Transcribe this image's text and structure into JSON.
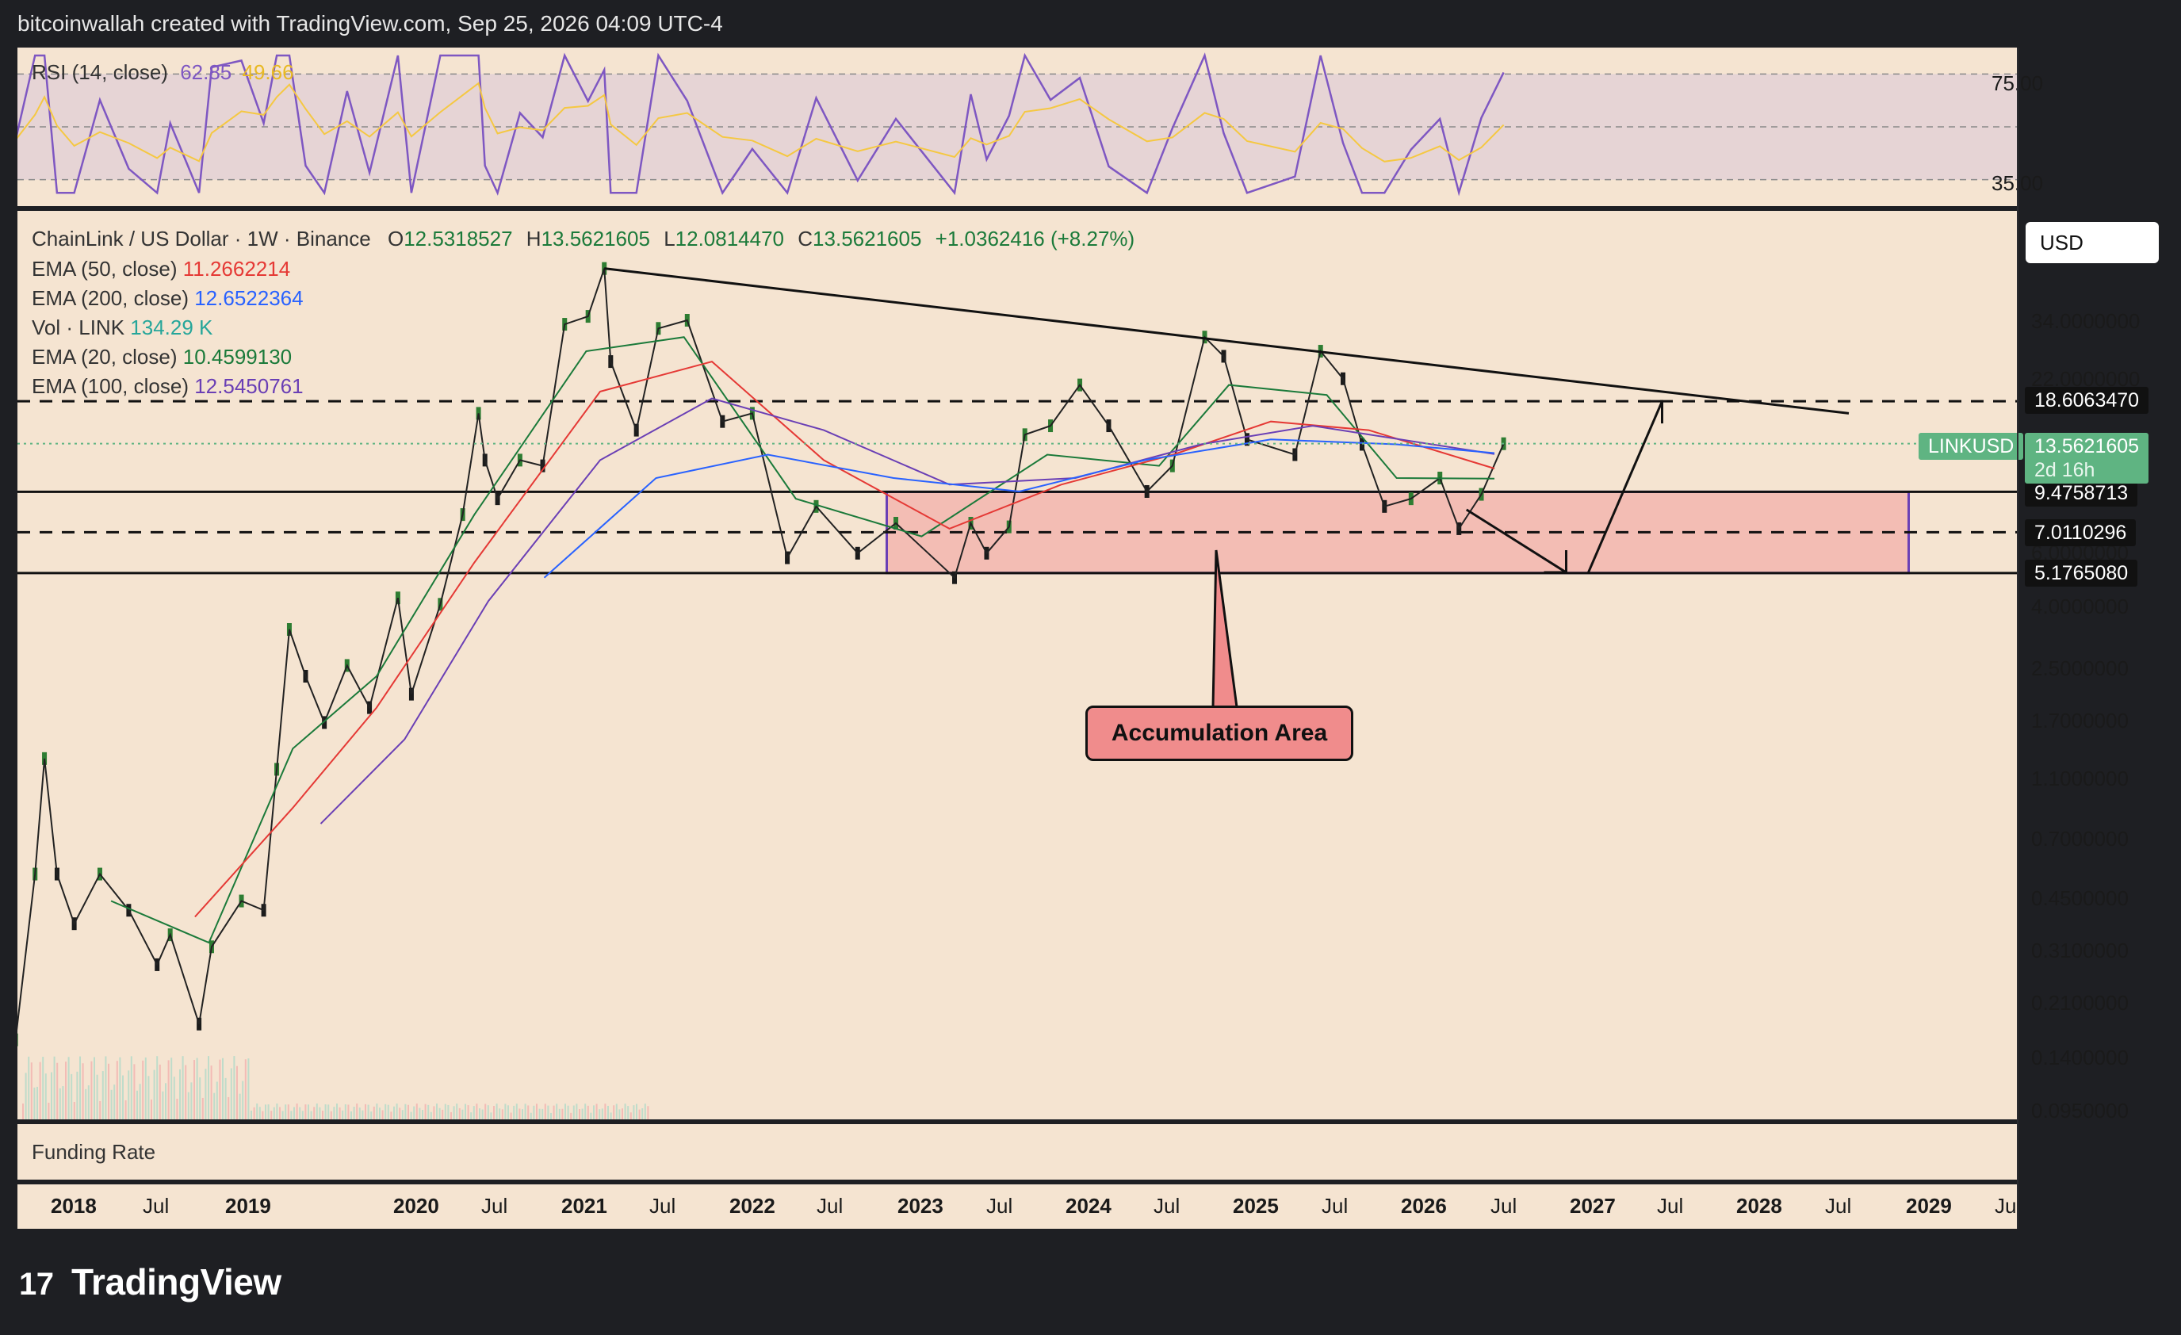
{
  "header": {
    "credit": "bitcoinwallah created with TradingView.com, Sep 25, 2026 04:09 UTC-4"
  },
  "rsi": {
    "label": "RSI (14, close)",
    "value": "62.85",
    "ma_value": "49.66",
    "levels": [
      "75.00",
      "35.00"
    ],
    "colors": {
      "rsi": "#7e57c2",
      "ma": "#f5c842"
    }
  },
  "legend": {
    "title": "ChainLink / US Dollar · 1W · Binance",
    "ohlc": {
      "o_label": "O",
      "o": "12.5318527",
      "h_label": "H",
      "h": "13.5621605",
      "l_label": "L",
      "l": "12.0814470",
      "c_label": "C",
      "c": "13.5621605",
      "change": "+1.0362416 (+8.27%)"
    },
    "indicators": [
      {
        "label": "EMA (50, close)",
        "value": "11.2662214",
        "color": "#e53935"
      },
      {
        "label": "EMA (200, close)",
        "value": "12.6522364",
        "color": "#2962ff"
      },
      {
        "label": "Vol · LINK",
        "value": "134.29 K",
        "color": "#26a69a"
      },
      {
        "label": "EMA (20, close)",
        "value": "10.4599130",
        "color": "#1b7a3a"
      },
      {
        "label": "EMA (100, close)",
        "value": "12.5450761",
        "color": "#6a3fb5"
      }
    ]
  },
  "currency": "USD",
  "price_axis": [
    "34.0000000",
    "22.0000000",
    "6.0000000",
    "4.0000000",
    "2.5000000",
    "1.7000000",
    "1.1000000",
    "0.7000000",
    "0.4500000",
    "0.3100000",
    "0.2100000",
    "0.1400000",
    "0.0950000"
  ],
  "price_tags": [
    {
      "value": "18.6063470"
    },
    {
      "value": "9.4758713"
    },
    {
      "value": "7.0110296"
    },
    {
      "value": "5.1765080"
    }
  ],
  "current_price": {
    "symbol": "LINKUSD",
    "value": "13.5621605",
    "countdown": "2d 16h"
  },
  "time_axis": [
    "2018",
    "Jul",
    "2019",
    "2020",
    "Jul",
    "2021",
    "Jul",
    "2022",
    "Jul",
    "2023",
    "Jul",
    "2024",
    "Jul",
    "2025",
    "Jul",
    "2026",
    "Jul",
    "2027",
    "Jul",
    "2028",
    "Jul",
    "2029",
    "Jul"
  ],
  "annotation": {
    "label": "Accumulation Area"
  },
  "funding": {
    "label": "Funding Rate"
  },
  "brand": {
    "name": "TradingView"
  },
  "chart_data": {
    "type": "line",
    "title": "ChainLink / US Dollar · 1W · Binance",
    "y_scale": "log",
    "y_range": [
      0.085,
      55
    ],
    "x_range": [
      "2017-11",
      "2029-09"
    ],
    "series": [
      {
        "name": "LINKUSD",
        "points": [
          [
            "2017-11-06",
            0.16
          ],
          [
            "2017-12-18",
            0.55
          ],
          [
            "2018-01-08",
            1.3
          ],
          [
            "2018-02-05",
            0.55
          ],
          [
            "2018-03-12",
            0.38
          ],
          [
            "2018-05-07",
            0.55
          ],
          [
            "2018-07-09",
            0.42
          ],
          [
            "2018-09-10",
            0.28
          ],
          [
            "2018-10-08",
            0.35
          ],
          [
            "2018-12-10",
            0.18
          ],
          [
            "2019-01-07",
            0.32
          ],
          [
            "2019-03-11",
            0.45
          ],
          [
            "2019-04-29",
            0.42
          ],
          [
            "2019-05-27",
            1.2
          ],
          [
            "2019-06-24",
            3.4
          ],
          [
            "2019-07-29",
            2.4
          ],
          [
            "2019-09-09",
            1.7
          ],
          [
            "2019-10-28",
            2.6
          ],
          [
            "2019-12-16",
            1.9
          ],
          [
            "2020-02-17",
            4.3
          ],
          [
            "2020-03-16",
            2.1
          ],
          [
            "2020-05-18",
            4.1
          ],
          [
            "2020-07-06",
            8.0
          ],
          [
            "2020-08-10",
            17.0
          ],
          [
            "2020-08-24",
            12.0
          ],
          [
            "2020-09-21",
            9.0
          ],
          [
            "2020-11-09",
            12.0
          ],
          [
            "2020-12-28",
            11.5
          ],
          [
            "2021-02-15",
            33.0
          ],
          [
            "2021-04-05",
            35.0
          ],
          [
            "2021-05-10",
            50.0
          ],
          [
            "2021-05-24",
            25.0
          ],
          [
            "2021-07-19",
            15.0
          ],
          [
            "2021-09-06",
            32.0
          ],
          [
            "2021-11-08",
            34.0
          ],
          [
            "2022-01-24",
            16.0
          ],
          [
            "2022-03-28",
            17.0
          ],
          [
            "2022-06-13",
            5.8
          ],
          [
            "2022-08-15",
            8.5
          ],
          [
            "2022-11-14",
            6.0
          ],
          [
            "2023-02-06",
            7.5
          ],
          [
            "2023-06-12",
            5.0
          ],
          [
            "2023-07-17",
            7.5
          ],
          [
            "2023-08-21",
            6.0
          ],
          [
            "2023-10-09",
            7.3
          ],
          [
            "2023-11-13",
            14.5
          ],
          [
            "2024-01-08",
            15.5
          ],
          [
            "2024-03-11",
            21.0
          ],
          [
            "2024-05-13",
            15.5
          ],
          [
            "2024-08-05",
            9.5
          ],
          [
            "2024-09-30",
            11.5
          ],
          [
            "2024-12-09",
            30.0
          ],
          [
            "2025-01-20",
            26.0
          ],
          [
            "2025-03-10",
            14.0
          ],
          [
            "2025-06-23",
            12.5
          ],
          [
            "2025-08-18",
            27.0
          ],
          [
            "2025-10-06",
            22.0
          ],
          [
            "2025-11-17",
            13.5
          ],
          [
            "2026-01-05",
            8.5
          ],
          [
            "2026-03-02",
            9.0
          ],
          [
            "2026-05-04",
            10.5
          ],
          [
            "2026-06-15",
            7.2
          ],
          [
            "2026-08-03",
            9.3
          ],
          [
            "2026-09-21",
            13.56
          ]
        ]
      },
      {
        "name": "EMA (20, close)",
        "points": [
          [
            "2018-06",
            0.45
          ],
          [
            "2019-01",
            0.33
          ],
          [
            "2019-07",
            1.4
          ],
          [
            "2020-01",
            2.4
          ],
          [
            "2020-08",
            8.0
          ],
          [
            "2021-04",
            27.0
          ],
          [
            "2021-11",
            30.0
          ],
          [
            "2022-07",
            9.0
          ],
          [
            "2023-04",
            6.8
          ],
          [
            "2024-01",
            12.5
          ],
          [
            "2024-09",
            11.5
          ],
          [
            "2025-02",
            21.0
          ],
          [
            "2025-09",
            19.5
          ],
          [
            "2026-02",
            10.5
          ],
          [
            "2026-09",
            10.46
          ]
        ]
      },
      {
        "name": "EMA (50, close)",
        "points": [
          [
            "2018-12",
            0.4
          ],
          [
            "2019-07",
            0.9
          ],
          [
            "2020-01",
            1.9
          ],
          [
            "2020-08",
            5.6
          ],
          [
            "2021-05",
            20.0
          ],
          [
            "2022-01",
            25.0
          ],
          [
            "2022-09",
            12.0
          ],
          [
            "2023-06",
            7.2
          ],
          [
            "2024-02",
            10.0
          ],
          [
            "2024-10",
            12.5
          ],
          [
            "2025-05",
            16.0
          ],
          [
            "2025-12",
            15.0
          ],
          [
            "2026-09",
            11.27
          ]
        ]
      },
      {
        "name": "EMA (100, close)",
        "points": [
          [
            "2019-09",
            0.8
          ],
          [
            "2020-03",
            1.5
          ],
          [
            "2020-09",
            4.2
          ],
          [
            "2021-05",
            12.0
          ],
          [
            "2022-01",
            19.0
          ],
          [
            "2022-09",
            15.0
          ],
          [
            "2023-06",
            10.0
          ],
          [
            "2024-03",
            10.5
          ],
          [
            "2024-12",
            13.5
          ],
          [
            "2025-08",
            15.5
          ],
          [
            "2026-09",
            12.55
          ]
        ]
      },
      {
        "name": "EMA (200, close)",
        "points": [
          [
            "2021-01",
            5.0
          ],
          [
            "2021-09",
            10.5
          ],
          [
            "2022-05",
            12.5
          ],
          [
            "2023-02",
            10.5
          ],
          [
            "2023-11",
            9.5
          ],
          [
            "2024-08",
            12.0
          ],
          [
            "2025-05",
            14.0
          ],
          [
            "2026-02",
            13.5
          ],
          [
            "2026-09",
            12.65
          ]
        ]
      }
    ],
    "rsi_series": {
      "name": "RSI (14, close)",
      "y_range": [
        25,
        85
      ],
      "levels": [
        75,
        35
      ]
    },
    "annotations": [
      {
        "type": "descending-trendline",
        "from": [
          "2021-05-10",
          50.0
        ],
        "to": [
          "2028-12",
          17.0
        ]
      },
      {
        "type": "horizontal-level",
        "value": 18.606347
      },
      {
        "type": "horizontal-level",
        "value": 9.4758713
      },
      {
        "type": "horizontal-level",
        "value": 7.0110296
      },
      {
        "type": "horizontal-level",
        "value": 5.176508
      },
      {
        "type": "zone",
        "label": "Accumulation Area",
        "from": "2020-07",
        "to": "2029-03",
        "range": [
          5.176508,
          9.4758713
        ]
      },
      {
        "type": "projection-arrows",
        "path": [
          [
            "2026-07",
            8.3
          ],
          [
            "2027-01",
            5.2
          ],
          [
            "2027-09",
            18.6
          ]
        ]
      }
    ]
  }
}
